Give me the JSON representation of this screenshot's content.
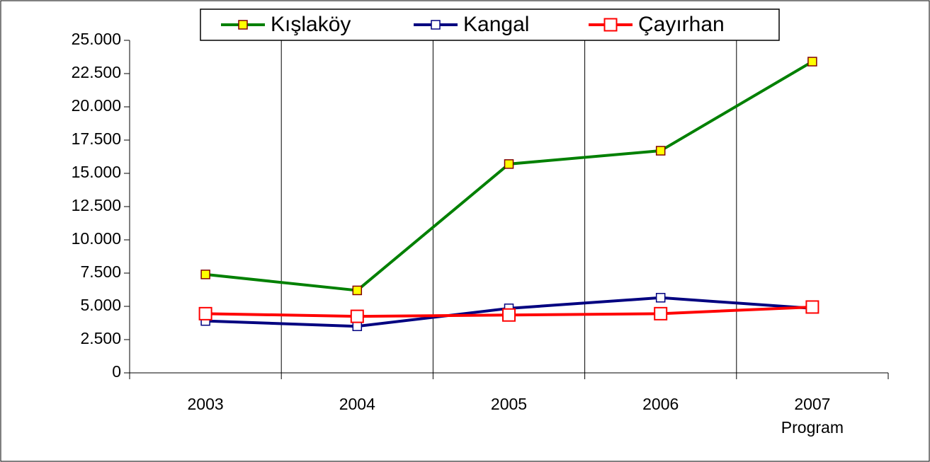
{
  "chart_data": {
    "type": "line",
    "categories": [
      "2003",
      "2004",
      "2005",
      "2006",
      "2007 Program"
    ],
    "series": [
      {
        "name": "Kışlaköy",
        "color": "#008000",
        "marker_fill": "#ffff00",
        "marker_stroke": "#800000",
        "values": [
          7400,
          6200,
          15700,
          16700,
          23400
        ]
      },
      {
        "name": "Kangal",
        "color": "#000080",
        "marker_fill": "#ffffff",
        "marker_stroke": "#000080",
        "values": [
          3900,
          3500,
          4850,
          5650,
          4850
        ]
      },
      {
        "name": "Çayırhan",
        "color": "#ff0000",
        "marker_fill": "#ffffff",
        "marker_stroke": "#ff0000",
        "values": [
          4450,
          4250,
          4350,
          4450,
          4950
        ]
      }
    ],
    "ylim": [
      0,
      25000
    ],
    "yticks": [
      0,
      {
        "value": 2500,
        "label": "2.500"
      },
      {
        "value": 5000,
        "label": "5.000"
      },
      {
        "value": 7500,
        "label": "7.500"
      },
      {
        "value": 10000,
        "label": "10.000"
      },
      {
        "value": 12500,
        "label": "12.500"
      },
      {
        "value": 15000,
        "label": "15.000"
      },
      {
        "value": 17500,
        "label": "17.500"
      },
      {
        "value": 20000,
        "label": "20.000"
      },
      {
        "value": 22500,
        "label": "22.500"
      },
      {
        "value": 25000,
        "label": "25.000"
      }
    ],
    "grid": "x",
    "legend": "top"
  }
}
